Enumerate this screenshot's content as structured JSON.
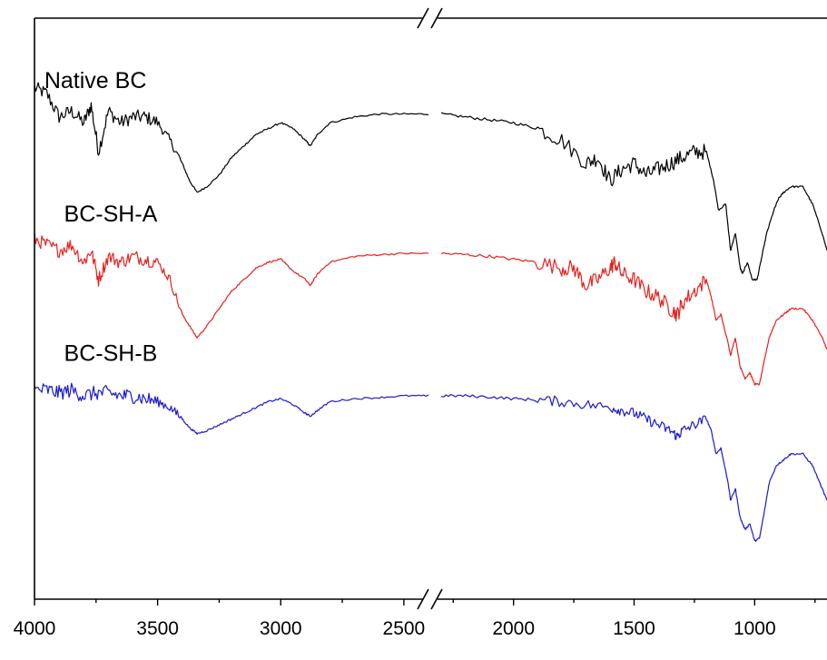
{
  "chart_data": {
    "type": "line",
    "title": "",
    "xlabel": "",
    "ylabel": "",
    "x_reversed": true,
    "x_break": [
      2400,
      2300
    ],
    "x_segments": [
      [
        4000,
        2400
      ],
      [
        2300,
        700
      ]
    ],
    "xticks": [
      4000,
      3500,
      3000,
      2500,
      2000,
      1500,
      1000
    ],
    "xtick_labels": [
      "4000",
      "3500",
      "3000",
      "2500",
      "2000",
      "1500",
      "1000"
    ],
    "ylim": [
      0,
      100
    ],
    "grid": false,
    "legend": "none",
    "series": [
      {
        "name": "Native BC",
        "color": "#000000",
        "label_at": [
          3960,
          88
        ],
        "points": [
          [
            4000,
            88
          ],
          [
            3950,
            87
          ],
          [
            3900,
            83
          ],
          [
            3850,
            84
          ],
          [
            3800,
            82
          ],
          [
            3770,
            85
          ],
          [
            3740,
            77
          ],
          [
            3700,
            84
          ],
          [
            3650,
            82
          ],
          [
            3600,
            83
          ],
          [
            3550,
            83
          ],
          [
            3500,
            82
          ],
          [
            3450,
            79
          ],
          [
            3400,
            75
          ],
          [
            3370,
            72
          ],
          [
            3340,
            70
          ],
          [
            3300,
            71
          ],
          [
            3250,
            73
          ],
          [
            3200,
            76
          ],
          [
            3150,
            78
          ],
          [
            3100,
            80
          ],
          [
            3050,
            81
          ],
          [
            3000,
            82
          ],
          [
            2950,
            81
          ],
          [
            2900,
            79
          ],
          [
            2880,
            78
          ],
          [
            2850,
            80
          ],
          [
            2800,
            82
          ],
          [
            2700,
            83
          ],
          [
            2600,
            83.5
          ],
          [
            2500,
            83.5
          ],
          [
            2400,
            83.5
          ],
          [
            2300,
            83.5
          ],
          [
            2200,
            83
          ],
          [
            2100,
            82.5
          ],
          [
            2000,
            82
          ],
          [
            1900,
            81
          ],
          [
            1800,
            79
          ],
          [
            1700,
            75
          ],
          [
            1650,
            76
          ],
          [
            1600,
            72
          ],
          [
            1550,
            74
          ],
          [
            1500,
            75
          ],
          [
            1450,
            73
          ],
          [
            1400,
            74
          ],
          [
            1350,
            75
          ],
          [
            1300,
            76
          ],
          [
            1250,
            77
          ],
          [
            1200,
            77
          ],
          [
            1170,
            72
          ],
          [
            1150,
            67
          ],
          [
            1120,
            68
          ],
          [
            1100,
            60
          ],
          [
            1080,
            63
          ],
          [
            1060,
            57
          ],
          [
            1050,
            56
          ],
          [
            1030,
            58
          ],
          [
            1010,
            55
          ],
          [
            990,
            55
          ],
          [
            970,
            59
          ],
          [
            950,
            63
          ],
          [
            920,
            67
          ],
          [
            900,
            69
          ],
          [
            880,
            70
          ],
          [
            850,
            71
          ],
          [
            800,
            71
          ],
          [
            760,
            68
          ],
          [
            720,
            63
          ],
          [
            700,
            60
          ]
        ]
      },
      {
        "name": "BC-SH-A",
        "color": "#e8201c",
        "label_at": [
          3880,
          65
        ],
        "points": [
          [
            4000,
            62
          ],
          [
            3950,
            61
          ],
          [
            3900,
            60
          ],
          [
            3850,
            61
          ],
          [
            3800,
            58
          ],
          [
            3770,
            60
          ],
          [
            3740,
            55
          ],
          [
            3700,
            59
          ],
          [
            3650,
            58
          ],
          [
            3600,
            59
          ],
          [
            3550,
            58.5
          ],
          [
            3500,
            58
          ],
          [
            3450,
            55
          ],
          [
            3400,
            49
          ],
          [
            3370,
            47
          ],
          [
            3340,
            45
          ],
          [
            3300,
            47
          ],
          [
            3250,
            50
          ],
          [
            3200,
            53
          ],
          [
            3150,
            55
          ],
          [
            3100,
            57
          ],
          [
            3050,
            58
          ],
          [
            3000,
            58.5
          ],
          [
            2950,
            56.5
          ],
          [
            2900,
            55
          ],
          [
            2880,
            54
          ],
          [
            2850,
            56
          ],
          [
            2800,
            58
          ],
          [
            2700,
            59
          ],
          [
            2600,
            59.3
          ],
          [
            2500,
            59.5
          ],
          [
            2400,
            59.5
          ],
          [
            2300,
            59.5
          ],
          [
            2200,
            59.3
          ],
          [
            2100,
            59
          ],
          [
            2000,
            58.5
          ],
          [
            1900,
            58
          ],
          [
            1800,
            57
          ],
          [
            1750,
            57
          ],
          [
            1700,
            54
          ],
          [
            1650,
            55
          ],
          [
            1600,
            57
          ],
          [
            1580,
            58
          ],
          [
            1550,
            56
          ],
          [
            1500,
            55
          ],
          [
            1450,
            53
          ],
          [
            1400,
            52
          ],
          [
            1350,
            50
          ],
          [
            1320,
            49
          ],
          [
            1300,
            51
          ],
          [
            1250,
            53
          ],
          [
            1200,
            55
          ],
          [
            1180,
            52
          ],
          [
            1160,
            48
          ],
          [
            1140,
            49
          ],
          [
            1110,
            44
          ],
          [
            1100,
            42
          ],
          [
            1080,
            45
          ],
          [
            1060,
            40
          ],
          [
            1040,
            38
          ],
          [
            1020,
            39
          ],
          [
            1000,
            37
          ],
          [
            980,
            37
          ],
          [
            960,
            41
          ],
          [
            940,
            45
          ],
          [
            910,
            48
          ],
          [
            880,
            49
          ],
          [
            850,
            50
          ],
          [
            800,
            50
          ],
          [
            760,
            48
          ],
          [
            720,
            45
          ],
          [
            700,
            43
          ]
        ]
      },
      {
        "name": "BC-SH-B",
        "color": "#1a1ad0",
        "label_at": [
          3880,
          41
        ],
        "points": [
          [
            4000,
            36
          ],
          [
            3950,
            36
          ],
          [
            3900,
            35.5
          ],
          [
            3850,
            36
          ],
          [
            3800,
            35
          ],
          [
            3750,
            35.5
          ],
          [
            3700,
            35.5
          ],
          [
            3650,
            35
          ],
          [
            3600,
            35
          ],
          [
            3550,
            34.5
          ],
          [
            3500,
            34
          ],
          [
            3450,
            33
          ],
          [
            3400,
            31
          ],
          [
            3370,
            29.5
          ],
          [
            3340,
            28.5
          ],
          [
            3300,
            29
          ],
          [
            3250,
            30
          ],
          [
            3200,
            31
          ],
          [
            3150,
            32
          ],
          [
            3100,
            33
          ],
          [
            3050,
            34
          ],
          [
            3000,
            34.5
          ],
          [
            2950,
            33.5
          ],
          [
            2900,
            32
          ],
          [
            2880,
            31.5
          ],
          [
            2850,
            32.5
          ],
          [
            2800,
            34
          ],
          [
            2700,
            34.5
          ],
          [
            2600,
            34.7
          ],
          [
            2500,
            35
          ],
          [
            2400,
            35
          ],
          [
            2300,
            35
          ],
          [
            2200,
            35
          ],
          [
            2100,
            34.8
          ],
          [
            2000,
            34.5
          ],
          [
            1900,
            34.3
          ],
          [
            1800,
            34
          ],
          [
            1700,
            33.5
          ],
          [
            1600,
            33
          ],
          [
            1550,
            32.5
          ],
          [
            1500,
            32
          ],
          [
            1450,
            31
          ],
          [
            1400,
            30
          ],
          [
            1350,
            29
          ],
          [
            1320,
            28
          ],
          [
            1300,
            29
          ],
          [
            1250,
            30
          ],
          [
            1200,
            31
          ],
          [
            1180,
            29
          ],
          [
            1160,
            25
          ],
          [
            1140,
            26
          ],
          [
            1110,
            20
          ],
          [
            1100,
            17
          ],
          [
            1080,
            19
          ],
          [
            1060,
            14
          ],
          [
            1040,
            12
          ],
          [
            1020,
            13
          ],
          [
            1000,
            10
          ],
          [
            980,
            10.5
          ],
          [
            960,
            15
          ],
          [
            940,
            20
          ],
          [
            910,
            23
          ],
          [
            880,
            24
          ],
          [
            850,
            25
          ],
          [
            800,
            25
          ],
          [
            760,
            23
          ],
          [
            720,
            19
          ],
          [
            700,
            17
          ]
        ]
      }
    ]
  }
}
